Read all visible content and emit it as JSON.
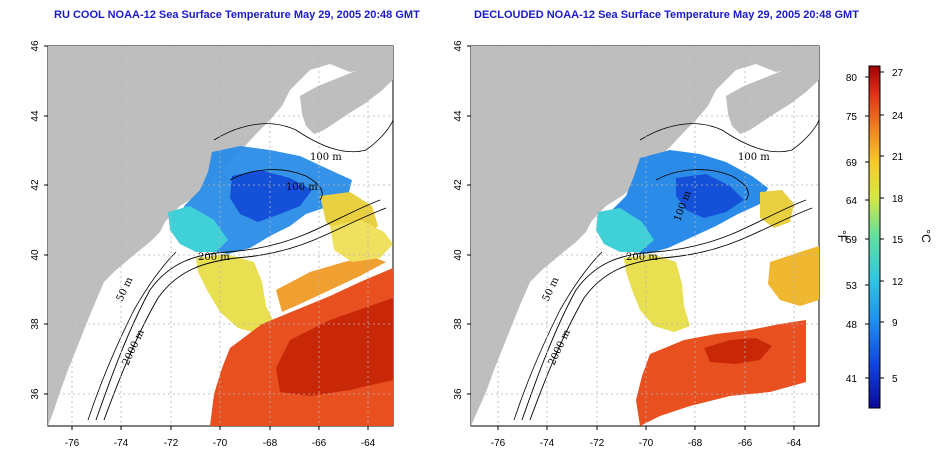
{
  "titles": {
    "left": "RU COOL NOAA-12 Sea Surface Temperature May 29, 2005 20:48 GMT",
    "right": "DECLOUDED NOAA-12 Sea Surface Temperature May 29, 2005 20:48 GMT"
  },
  "axes": {
    "lon_ticks": [
      "-76",
      "-74",
      "-72",
      "-70",
      "-68",
      "-66",
      "-64"
    ],
    "lat_ticks": [
      "36",
      "38",
      "40",
      "42",
      "44",
      "46"
    ]
  },
  "contour_labels": {
    "left": [
      "100 m",
      "100 m",
      "200 m",
      "50 m",
      "2000 m"
    ],
    "right": [
      "100 m",
      "100 m",
      "200 m",
      "50 m",
      "2000 m"
    ]
  },
  "colorbar": {
    "fahrenheit_unit": "°F",
    "celsius_unit": "°C",
    "fahrenheit_ticks": [
      "80",
      "75",
      "69",
      "64",
      "59",
      "53",
      "48",
      "41"
    ],
    "celsius_ticks": [
      "27",
      "24",
      "21",
      "18",
      "15",
      "12",
      "9",
      "5"
    ]
  },
  "colors": {
    "land": "#bebebe",
    "title": "#1a1acc",
    "grid": "#b4b4b4",
    "cold": "#0a0aa0",
    "cool": "#1e78f0",
    "mild": "#3ccde0",
    "warm": "#f0e040",
    "hot": "#e84818",
    "hottest": "#a00000"
  }
}
